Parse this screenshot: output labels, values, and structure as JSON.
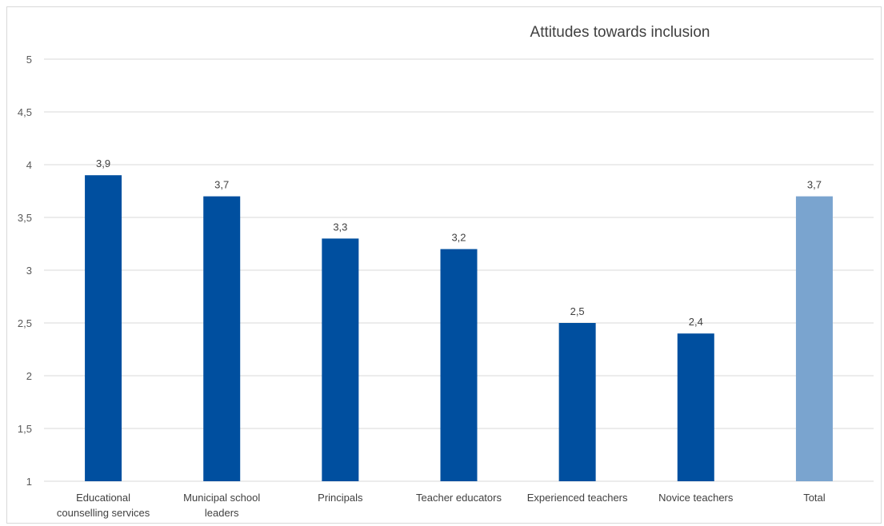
{
  "chart_data": {
    "type": "bar",
    "title": "Attitudes towards inclusion",
    "xlabel": "",
    "ylabel": "",
    "ylim": [
      1,
      5
    ],
    "yticks": [
      "5",
      "4,5",
      "4",
      "3,5",
      "3",
      "2,5",
      "2",
      "1,5",
      "1"
    ],
    "ytick_values": [
      5,
      4.5,
      4,
      3.5,
      3,
      2.5,
      2,
      1.5,
      1
    ],
    "grid": true,
    "legend": "none",
    "categories": [
      [
        "Educational",
        "counselling services"
      ],
      [
        "Municipal school",
        "leaders"
      ],
      [
        "Principals"
      ],
      [
        "Teacher educators"
      ],
      [
        "Experienced teachers"
      ],
      [
        "Novice teachers"
      ],
      [
        "Total"
      ]
    ],
    "values": [
      3.9,
      3.7,
      3.3,
      3.2,
      2.5,
      2.4,
      3.7
    ],
    "value_labels": [
      "3,9",
      "3,7",
      "3,3",
      "3,2",
      "2,5",
      "2,4",
      "3,7"
    ],
    "colors": [
      "#004f9f",
      "#004f9f",
      "#004f9f",
      "#004f9f",
      "#004f9f",
      "#004f9f",
      "#7aa4cf"
    ]
  }
}
